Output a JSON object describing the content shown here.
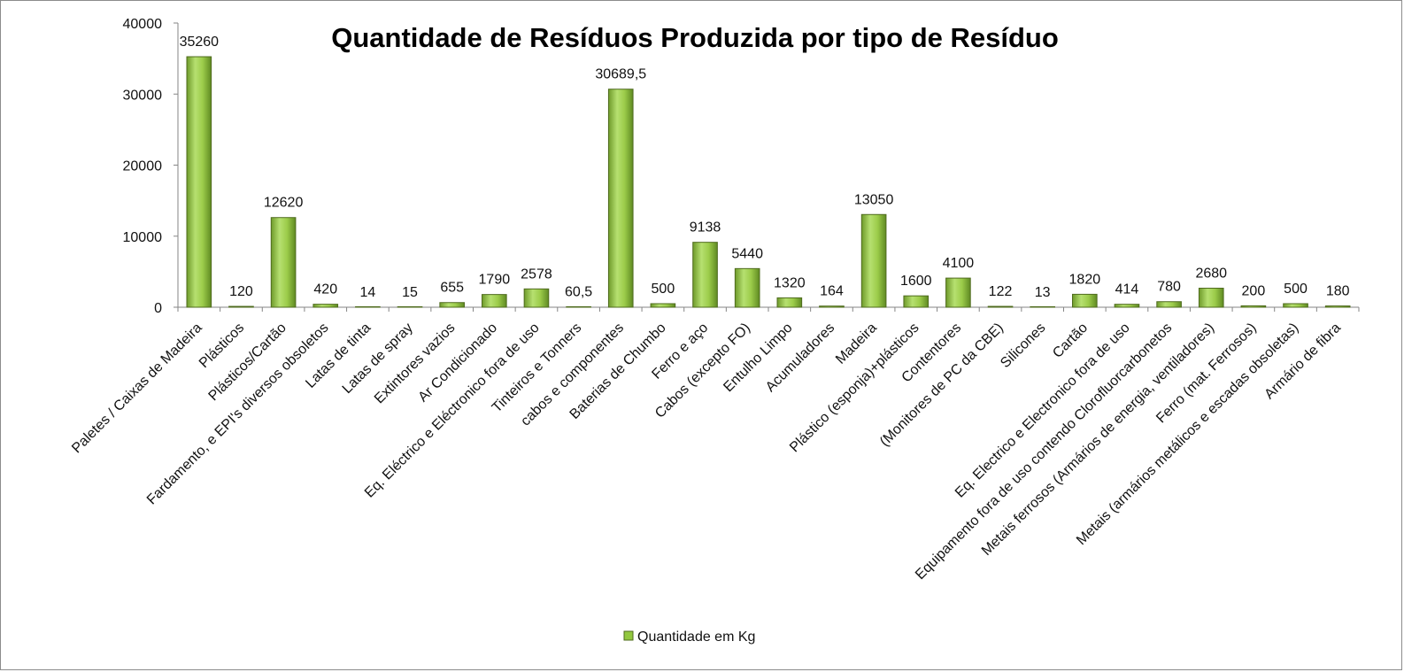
{
  "chart_data": {
    "type": "bar",
    "title": "Quantidade de Resíduos Produzida por tipo de Resíduo",
    "xlabel": "",
    "ylabel": "",
    "ylim": [
      0,
      40000
    ],
    "yticks": [
      "0",
      "10000",
      "20000",
      "30000",
      "40000"
    ],
    "ytick_values": [
      0,
      10000,
      20000,
      30000,
      40000
    ],
    "grid": false,
    "legend_position": "bottom",
    "bar_color": "#92c83e",
    "bar_edge_color": "#4f6b1e",
    "categories": [
      "Paletes / Caixas de Madeira",
      "Plásticos",
      "Plásticos/Cartão",
      "Fardamento, e EPI's diversos obsoletos",
      "Latas de tinta",
      "Latas de spray",
      "Extintores vazios",
      "Ar Condicionado",
      "Eq. Eléctrico e Eléctronico fora de uso",
      "Tinteiros e Tonners",
      "cabos e componentes",
      "Baterias de Chumbo",
      "Ferro e aço",
      "Cabos (excepto FO)",
      "Entulho Limpo",
      "Acumuladores",
      "Madeira",
      "Plástico (esponja)+plásticos",
      "Contentores",
      "(Monitores de PC da CBE)",
      "Silicones",
      "Cartão",
      "Eq. Electrico e Electronico fora de uso",
      "Equipamento fora de uso contendo Clorofluorcarbonetos",
      "Metais ferrosos (Armários de energia, ventiladores)",
      "Ferro (mat. Ferrosos)",
      "Metais (armários metálicos e escadas obsoletas)",
      "Armário de fibra"
    ],
    "series": [
      {
        "name": "Quantidade em Kg",
        "values": [
          35260,
          120,
          12620,
          420,
          14,
          15,
          655,
          1790,
          2578,
          60.5,
          30689.5,
          500,
          9138,
          5440,
          1320,
          164,
          13050,
          1600,
          4100,
          122,
          13,
          1820,
          414,
          780,
          2680,
          200,
          500,
          180
        ],
        "data_labels": [
          "35260",
          "120",
          "12620",
          "420",
          "14",
          "15",
          "655",
          "1790",
          "2578",
          "60,5",
          "30689,5",
          "500",
          "9138",
          "5440",
          "1320",
          "164",
          "13050",
          "1600",
          "4100",
          "122",
          "13",
          "1820",
          "414",
          "780",
          "2680",
          "200",
          "500",
          "180"
        ]
      }
    ]
  }
}
